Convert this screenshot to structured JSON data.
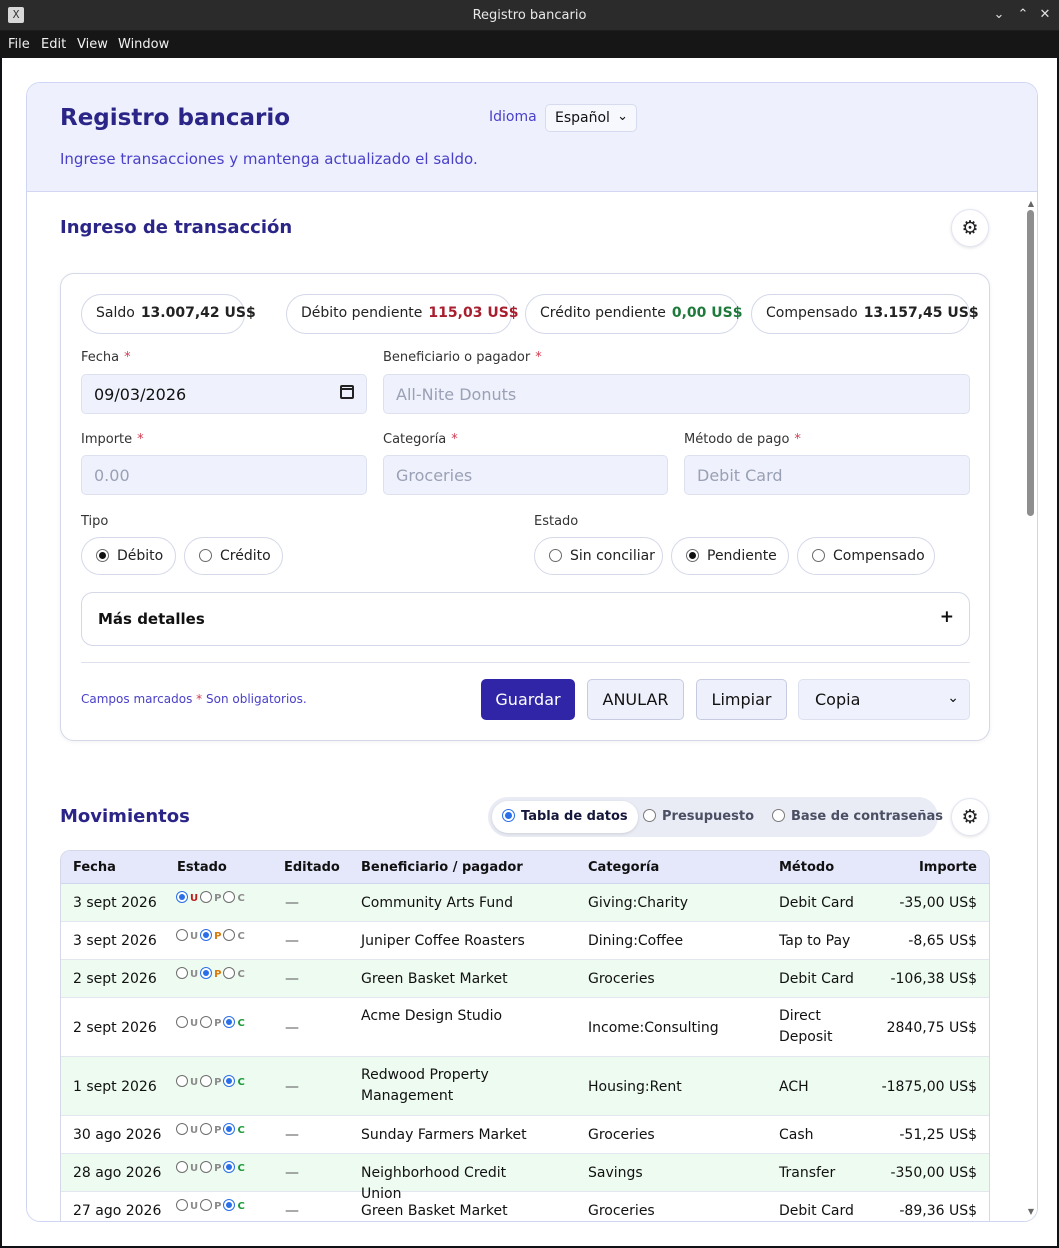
{
  "window": {
    "title": "Registro bancario",
    "app_icon_glyph": "X",
    "controls": {
      "minimize": "⌄",
      "maximize": "⌃",
      "close": "✕"
    }
  },
  "menu": [
    "File",
    "Edit",
    "View",
    "Window"
  ],
  "header": {
    "title": "Registro bancario",
    "subtitle": "Ingrese transacciones y mantenga actualizado el saldo.",
    "language_label": "Idioma",
    "language_value": "Español"
  },
  "entry": {
    "section_title": "Ingreso de transacción",
    "summary": {
      "balance_label": "Saldo",
      "balance_value": "13.007,42 US$",
      "pending_debit_label": "Débito pendiente",
      "pending_debit_value": "115,03 US$",
      "pending_credit_label": "Crédito pendiente",
      "pending_credit_value": "0,00 US$",
      "cleared_label": "Compensado",
      "cleared_value": "13.157,45 US$"
    },
    "fields": {
      "date_label": "Fecha",
      "date_value": "09/03/2026",
      "payee_label": "Beneficiario o pagador",
      "payee_placeholder": "All-Nite Donuts",
      "amount_label": "Importe",
      "amount_placeholder": "0.00",
      "category_label": "Categoría",
      "category_placeholder": "Groceries",
      "method_label": "Método de pago",
      "method_placeholder": "Debit Card",
      "required_mark": "*"
    },
    "type": {
      "label": "Tipo",
      "options": [
        "Débito",
        "Crédito"
      ],
      "selected": "Débito"
    },
    "status": {
      "label": "Estado",
      "options": [
        "Sin conciliar",
        "Pendiente",
        "Compensado"
      ],
      "selected": "Pendiente"
    },
    "more_details": {
      "label": "Más detalles",
      "toggle": "+"
    },
    "required_note": {
      "before": "Campos marcados",
      "star": "*",
      "after": "Son obligatorios."
    },
    "buttons": {
      "save": "Guardar",
      "void": "ANULAR",
      "clear": "Limpiar",
      "copy": "Copia"
    }
  },
  "movements": {
    "section_title": "Movimientos",
    "views": [
      "Tabla de datos",
      "Presupuesto",
      "Base de contraseñas"
    ],
    "selected_view": "Tabla de datos",
    "columns": [
      "Fecha",
      "Estado",
      "Editado",
      "Beneficiario / pagador",
      "Categoría",
      "Método",
      "Importe"
    ],
    "status_letters": [
      "U",
      "P",
      "C"
    ],
    "rows": [
      {
        "date": "3 sept 2026",
        "status": "U",
        "edited": "—",
        "payee": "Community Arts Fund",
        "category": "Giving:Charity",
        "method": "Debit Card",
        "amount": "-35,00 US$"
      },
      {
        "date": "3 sept 2026",
        "status": "P",
        "edited": "—",
        "payee": "Juniper Coffee Roasters",
        "category": "Dining:Coffee",
        "method": "Tap to Pay",
        "amount": "-8,65 US$"
      },
      {
        "date": "2 sept 2026",
        "status": "P",
        "edited": "—",
        "payee": "Green Basket Market",
        "category": "Groceries",
        "method": "Debit Card",
        "amount": "-106,38 US$"
      },
      {
        "date": "2 sept 2026",
        "status": "C",
        "edited": "—",
        "payee": "Acme Design Studio",
        "category": "Income:Consulting",
        "method": "Direct Deposit",
        "amount": "2840,75 US$"
      },
      {
        "date": "1 sept 2026",
        "status": "C",
        "edited": "—",
        "payee": "Redwood Property Management",
        "category": "Housing:Rent",
        "method": "ACH",
        "amount": "-1875,00 US$"
      },
      {
        "date": "30 ago 2026",
        "status": "C",
        "edited": "—",
        "payee": "Sunday Farmers Market",
        "category": "Groceries",
        "method": "Cash",
        "amount": "-51,25 US$"
      },
      {
        "date": "28 ago 2026",
        "status": "C",
        "edited": "—",
        "payee": "Neighborhood Credit Union",
        "category": "Savings",
        "method": "Transfer",
        "amount": "-350,00 US$"
      },
      {
        "date": "27 ago 2026",
        "status": "C",
        "edited": "—",
        "payee": "Green Basket Market",
        "category": "Groceries",
        "method": "Debit Card",
        "amount": "-89,36 US$"
      }
    ]
  },
  "icons": {
    "settings": "gear-icon",
    "calendar": "calendar-icon",
    "chevron": "chevron-down-icon"
  },
  "colors": {
    "accent": "#2f25a6",
    "title": "#2a2587",
    "negative": "#a81e2e",
    "positive": "#1e7a3a",
    "alt_row": "#eefbf1"
  }
}
